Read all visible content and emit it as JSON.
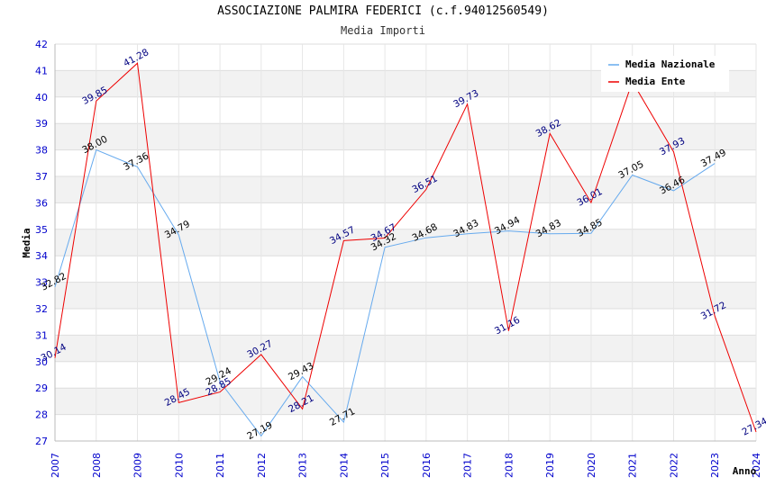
{
  "title": "ASSOCIAZIONE PALMIRA FEDERICI (c.f.94012560549)",
  "subtitle": "Media Importi",
  "chart_data": {
    "type": "line",
    "title": "ASSOCIAZIONE PALMIRA FEDERICI (c.f.94012560549)",
    "subtitle": "Media Importi",
    "xlabel": "Anno",
    "ylabel": "Media",
    "ylim": [
      27,
      42
    ],
    "yticks": [
      "27",
      "28",
      "29",
      "30",
      "31",
      "32",
      "33",
      "34",
      "35",
      "36",
      "37",
      "38",
      "39",
      "40",
      "41",
      "42"
    ],
    "x": [
      "2007",
      "2008",
      "2009",
      "2010",
      "2011",
      "2012",
      "2013",
      "2014",
      "2015",
      "2016",
      "2017",
      "2018",
      "2019",
      "2020",
      "2021",
      "2022",
      "2023",
      "2024"
    ],
    "series": [
      {
        "name": "Media Nazionale",
        "color": "#66aaee",
        "values": [
          32.82,
          38.0,
          37.36,
          34.79,
          29.24,
          27.19,
          29.43,
          27.71,
          34.32,
          34.68,
          34.83,
          34.94,
          34.83,
          34.85,
          37.05,
          36.46,
          37.49,
          null
        ],
        "labels": [
          "32.82",
          "38.00",
          "37.36",
          "34.79",
          "29.24",
          "27.19",
          "29.43",
          "27.71",
          "34.32",
          "34.68",
          "34.83",
          "34.94",
          "34.83",
          "34.85",
          "37.05",
          "36.46",
          "37.49",
          null
        ]
      },
      {
        "name": "Media Ente",
        "color": "#ee0000",
        "values": [
          30.14,
          39.85,
          41.28,
          28.45,
          28.85,
          30.27,
          28.21,
          34.57,
          34.67,
          36.51,
          39.73,
          31.16,
          38.62,
          36.01,
          40.58,
          37.93,
          31.72,
          27.34
        ],
        "labels": [
          "30.14",
          "39.85",
          "41.28",
          "28.45",
          "28.85",
          "30.27",
          "28.21",
          "34.57",
          "34.67",
          "36.51",
          "39.73",
          "31.16",
          "38.62",
          "36.01",
          null,
          "37.93",
          "31.72",
          "27.34"
        ]
      }
    ],
    "grid": true,
    "legend_position": "top-right"
  }
}
